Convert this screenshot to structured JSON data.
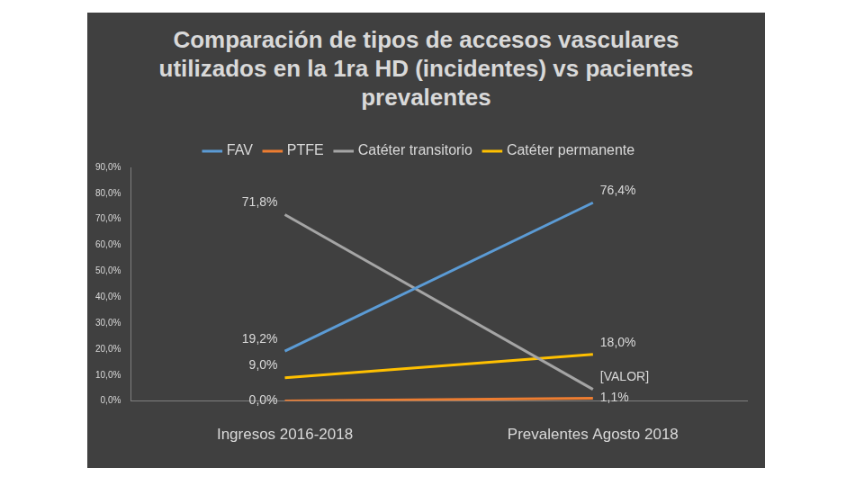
{
  "chart_data": {
    "type": "line",
    "title": "Comparación de tipos de accesos vasculares utilizados en la 1ra HD (incidentes) vs pacientes prevalentes",
    "categories": [
      "Ingresos 2016-2018",
      "Prevalentes Agosto 2018"
    ],
    "series": [
      {
        "name": "FAV",
        "color": "#5b9bd5",
        "values": [
          19.2,
          76.4
        ],
        "value_labels": [
          "19,2%",
          "76,4%"
        ]
      },
      {
        "name": "PTFE",
        "color": "#ed7d31",
        "values": [
          0.0,
          1.1
        ],
        "value_labels": [
          "0,0%",
          "1,1%"
        ]
      },
      {
        "name": "Catéter transitorio",
        "color": "#a5a5a5",
        "values": [
          71.8,
          4.5
        ],
        "value_labels": [
          "71,8%",
          "[VALOR]"
        ]
      },
      {
        "name": "Catéter permanente",
        "color": "#ffc000",
        "values": [
          9.0,
          18.0
        ],
        "value_labels": [
          "9,0%",
          "18,0%"
        ]
      }
    ],
    "ylim": [
      0,
      90
    ],
    "yticks": [
      {
        "value": 0,
        "label": "0,0%"
      },
      {
        "value": 10,
        "label": "10,0%"
      },
      {
        "value": 20,
        "label": "20,0%"
      },
      {
        "value": 30,
        "label": "30,0%"
      },
      {
        "value": 40,
        "label": "40,0%"
      },
      {
        "value": 50,
        "label": "50,0%"
      },
      {
        "value": 60,
        "label": "60,0%"
      },
      {
        "value": 70,
        "label": "70,0%"
      },
      {
        "value": 80,
        "label": "80,0%"
      },
      {
        "value": 90,
        "label": "90,0%"
      }
    ],
    "grid": false,
    "legend": "top",
    "data_labels": true
  }
}
